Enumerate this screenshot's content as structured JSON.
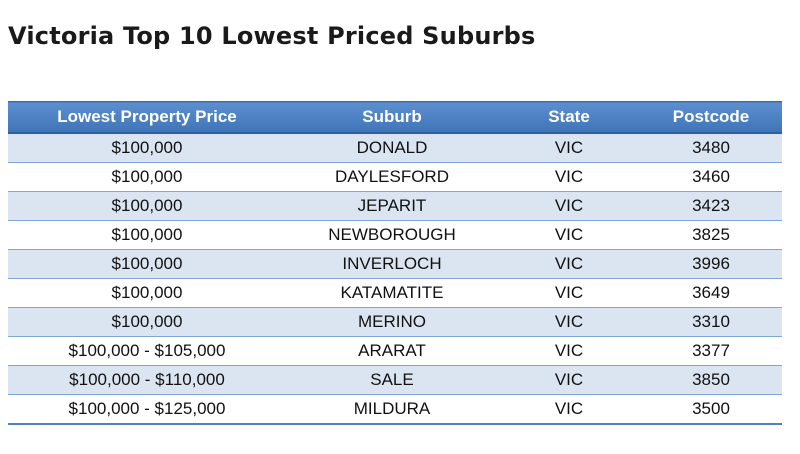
{
  "title": "Victoria Top 10 Lowest Priced Suburbs",
  "table": {
    "headers": [
      "Lowest Property Price",
      "Suburb",
      "State",
      "Postcode"
    ],
    "rows": [
      [
        "$100,000",
        "DONALD",
        "VIC",
        "3480"
      ],
      [
        "$100,000",
        "DAYLESFORD",
        "VIC",
        "3460"
      ],
      [
        "$100,000",
        "JEPARIT",
        "VIC",
        "3423"
      ],
      [
        "$100,000",
        "NEWBOROUGH",
        "VIC",
        "3825"
      ],
      [
        "$100,000",
        "INVERLOCH",
        "VIC",
        "3996"
      ],
      [
        "$100,000",
        "KATAMATITE",
        "VIC",
        "3649"
      ],
      [
        "$100,000",
        "MERINO",
        "VIC",
        "3310"
      ],
      [
        "$100,000 - $105,000",
        "ARARAT",
        "VIC",
        "3377"
      ],
      [
        "$100,000 - $110,000",
        "SALE",
        "VIC",
        "3850"
      ],
      [
        "$100,000 - $125,000",
        "MILDURA",
        "VIC",
        "3500"
      ]
    ]
  },
  "colors": {
    "header_bg": "#4f81bd",
    "header_text": "#ffffff",
    "band_row": "#dbe5f1",
    "plain_row": "#ffffff",
    "row_divider": "#7fa6d6"
  }
}
